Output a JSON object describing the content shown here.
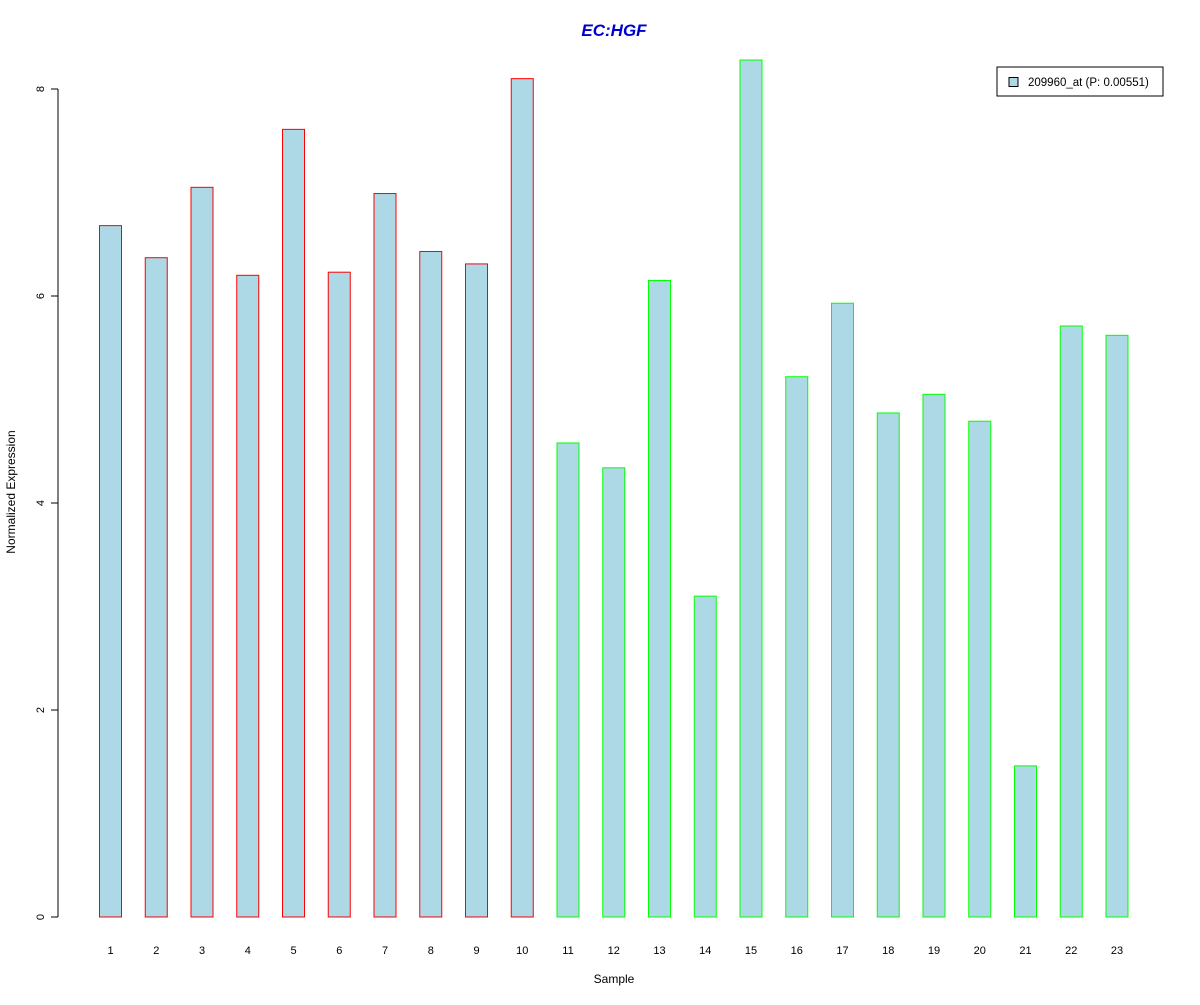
{
  "chart_data": {
    "type": "bar",
    "title": "EC:HGF",
    "xlabel": "Sample",
    "ylabel": "Normalized Expression",
    "categories": [
      "1",
      "2",
      "3",
      "4",
      "5",
      "6",
      "7",
      "8",
      "9",
      "10",
      "11",
      "12",
      "13",
      "14",
      "15",
      "16",
      "17",
      "18",
      "19",
      "20",
      "21",
      "22",
      "23"
    ],
    "values": [
      6.68,
      6.37,
      7.05,
      6.2,
      7.61,
      6.23,
      6.99,
      6.43,
      6.31,
      8.1,
      4.58,
      4.34,
      6.15,
      3.1,
      8.28,
      5.22,
      5.93,
      4.87,
      5.05,
      4.79,
      1.46,
      5.71,
      5.62
    ],
    "groups": [
      1,
      1,
      1,
      1,
      1,
      1,
      1,
      1,
      1,
      1,
      2,
      2,
      2,
      2,
      2,
      2,
      2,
      2,
      2,
      2,
      2,
      2,
      2
    ],
    "group_colors": {
      "1": "#ff0000",
      "2": "#00ff00"
    },
    "fill_color": "#add8e6",
    "title_color": "#0000cd",
    "ylim": [
      0,
      8.3
    ],
    "yticks": [
      0,
      2,
      4,
      6,
      8
    ],
    "grid": false,
    "legend": {
      "position": "top-right",
      "entries": [
        {
          "label": "209960_at (P: 0.00551)",
          "color": "#add8e6"
        }
      ]
    }
  }
}
